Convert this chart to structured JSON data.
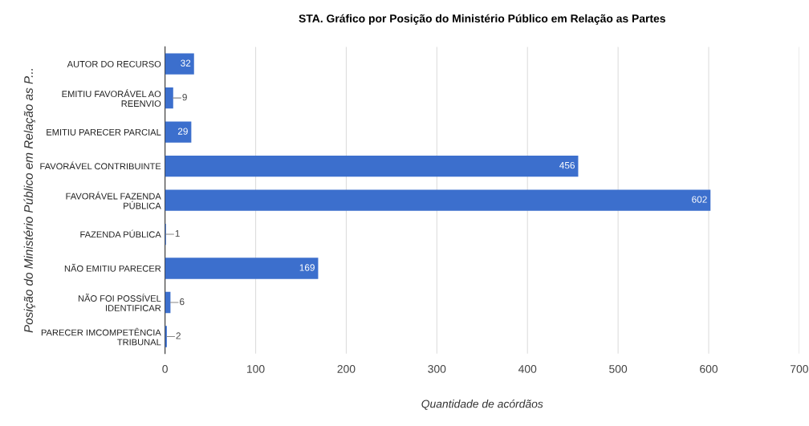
{
  "chart_data": {
    "type": "bar",
    "orientation": "horizontal",
    "title": "STA. Gráfico por Posição do Ministério Público em Relação as Partes",
    "xlabel": "Quantidade de acórdãos",
    "ylabel": "Posição do Ministério Público em Relação as P...",
    "categories": [
      "AUTOR DO RECURSO",
      "EMITIU FAVORÁVEL AO REENVIO",
      "EMITIU PARECER PARCIAL",
      "FAVORÁVEL CONTRIBUINTE",
      "FAVORÁVEL FAZENDA PÚBLICA",
      "FAZENDA PÚBLICA",
      "NÃO EMITIU PARECER",
      "NÃO FOI POSSÍVEL IDENTIFICAR",
      "PARECER IMCOMPETÊNCIA TRIBUNAL"
    ],
    "values": [
      32,
      9,
      29,
      456,
      602,
      1,
      169,
      6,
      2
    ],
    "color": "#3c6fcd",
    "xlim": [
      0,
      700
    ],
    "xticks": [
      0,
      100,
      200,
      300,
      400,
      500,
      600,
      700
    ],
    "grid": "x",
    "data_labels": true
  }
}
